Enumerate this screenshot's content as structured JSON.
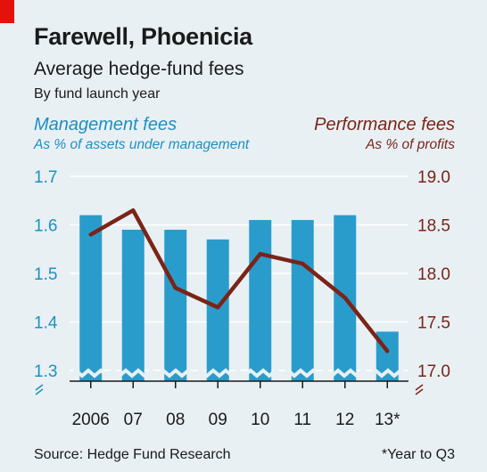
{
  "header": {
    "title": "Farewell, Phoenicia",
    "subtitle": "Average hedge-fund fees",
    "note": "By fund launch year"
  },
  "legend": {
    "left_title": "Management fees",
    "left_sub": "As % of assets under management",
    "right_title": "Performance fees",
    "right_sub": "As % of profits"
  },
  "footer": {
    "source": "Source: Hedge Fund Research",
    "footnote": "*Year to Q3"
  },
  "colors": {
    "bar": "#2a9ccc",
    "line": "#7a2417",
    "left_axis": "#1e8fbf",
    "right_axis": "#7a2417",
    "grid": "#ffffff",
    "accent": "#e3120b"
  },
  "chart_data": {
    "type": "bar",
    "categories": [
      "2006",
      "07",
      "08",
      "09",
      "10",
      "11",
      "12",
      "13*"
    ],
    "series": [
      {
        "name": "Management fees",
        "type": "bar",
        "axis": "left",
        "values": [
          1.62,
          1.59,
          1.59,
          1.57,
          1.61,
          1.61,
          1.62,
          1.38
        ]
      },
      {
        "name": "Performance fees",
        "type": "line",
        "axis": "right",
        "values": [
          18.4,
          18.65,
          17.85,
          17.65,
          18.2,
          18.1,
          17.75,
          17.2
        ]
      }
    ],
    "y_left": {
      "ticks": [
        "1.7",
        "1.6",
        "1.5",
        "1.4",
        "1.3"
      ],
      "range": [
        1.3,
        1.7
      ],
      "broken_axis": true
    },
    "y_right": {
      "ticks": [
        "19.0",
        "18.5",
        "18.0",
        "17.5",
        "17.0"
      ],
      "range": [
        17.0,
        19.0
      ],
      "broken_axis": true
    },
    "grid": true
  }
}
